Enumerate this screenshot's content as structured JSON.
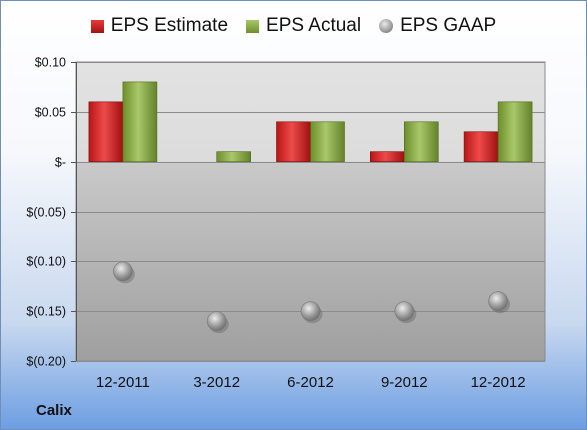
{
  "company": "Calix",
  "legend": {
    "estimate": "EPS Estimate",
    "actual": "EPS Actual",
    "gaap": "EPS GAAP"
  },
  "colors": {
    "estimate": "#d02a2a",
    "actual": "#8cad4a",
    "gaap": "#9a9a9a"
  },
  "chart_data": {
    "type": "bar",
    "categories": [
      "12-2011",
      "3-2012",
      "6-2012",
      "9-2012",
      "12-2012"
    ],
    "series": [
      {
        "name": "EPS Estimate",
        "type": "bar",
        "values": [
          0.06,
          null,
          0.04,
          0.01,
          0.03
        ]
      },
      {
        "name": "EPS Actual",
        "type": "bar",
        "values": [
          0.08,
          0.01,
          0.04,
          0.04,
          0.06
        ]
      },
      {
        "name": "EPS GAAP",
        "type": "scatter",
        "values": [
          -0.11,
          -0.16,
          -0.15,
          -0.15,
          -0.14
        ]
      }
    ],
    "ylim": [
      -0.2,
      0.1
    ],
    "yticks": [
      0.1,
      0.05,
      0,
      -0.05,
      -0.1,
      -0.15,
      -0.2
    ],
    "ytick_labels": [
      "$0.10",
      "$0.05",
      "$-",
      "$(0.05)",
      "$(0.10)",
      "$(0.15)",
      "$(0.20)"
    ],
    "grid": true,
    "legend_position": "top"
  }
}
